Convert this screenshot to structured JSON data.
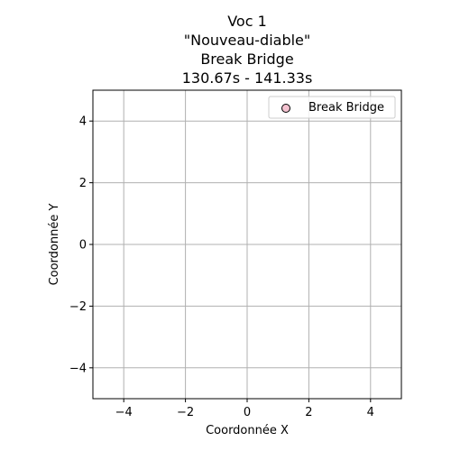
{
  "chart_data": {
    "type": "scatter",
    "title_lines": [
      "Voc 1",
      "\"Nouveau-diable\"",
      "Break Bridge",
      "130.67s - 141.33s"
    ],
    "xlabel": "Coordonnée X",
    "ylabel": "Coordonnée Y",
    "xlim": [
      -5,
      5
    ],
    "ylim": [
      -5,
      5
    ],
    "xticks": [
      -4,
      -2,
      0,
      2,
      4
    ],
    "yticks": [
      -4,
      -2,
      0,
      2,
      4
    ],
    "xtick_labels": [
      "−4",
      "−2",
      "0",
      "2",
      "4"
    ],
    "ytick_labels": [
      "−4",
      "−2",
      "0",
      "2",
      "4"
    ],
    "grid": true,
    "legend_position": "top-right",
    "series": [
      {
        "name": "Break Bridge",
        "marker_color": "#f4c2d0",
        "edge_color": "#000000",
        "points": []
      }
    ]
  }
}
